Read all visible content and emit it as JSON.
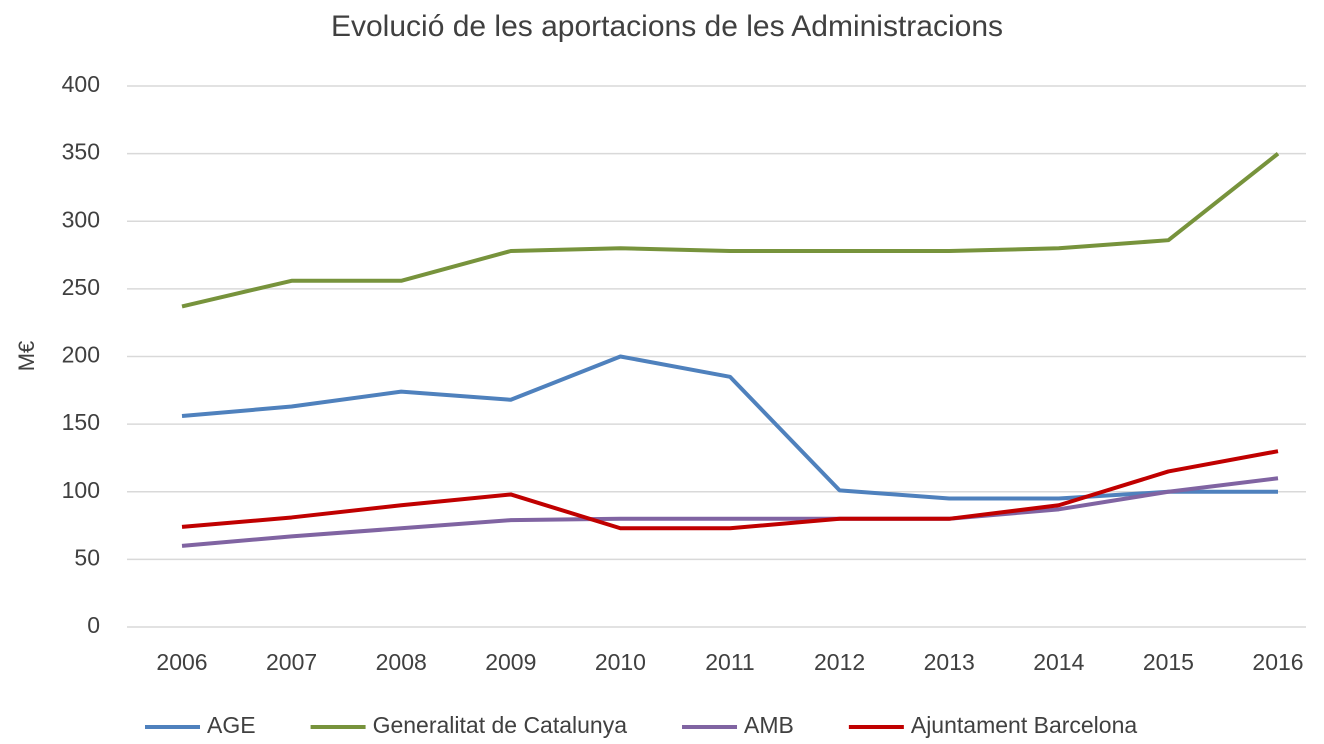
{
  "chart_data": {
    "type": "line",
    "title": "Evolució de les aportacions de les Administracions",
    "ylabel": "M€",
    "categories": [
      "2006",
      "2007",
      "2008",
      "2009",
      "2010",
      "2011",
      "2012",
      "2013",
      "2014",
      "2015",
      "2016"
    ],
    "series": [
      {
        "name": "AGE",
        "color": "#4f81bd",
        "values": [
          156,
          163,
          174,
          168,
          200,
          185,
          101,
          95,
          95,
          100,
          100
        ]
      },
      {
        "name": "Generalitat de Catalunya",
        "color": "#77933c",
        "values": [
          237,
          256,
          256,
          278,
          280,
          278,
          278,
          278,
          280,
          286,
          350
        ]
      },
      {
        "name": "AMB",
        "color": "#8064a2",
        "values": [
          60,
          67,
          73,
          79,
          80,
          80,
          80,
          80,
          87,
          100,
          110
        ]
      },
      {
        "name": "Ajuntament Barcelona",
        "color": "#c00000",
        "values": [
          74,
          81,
          90,
          98,
          73,
          73,
          80,
          80,
          90,
          115,
          130
        ]
      }
    ],
    "ylim": [
      0,
      400
    ],
    "yticks": [
      0,
      50,
      100,
      150,
      200,
      250,
      300,
      350,
      400
    ],
    "grid": true,
    "legend": "bottom"
  }
}
